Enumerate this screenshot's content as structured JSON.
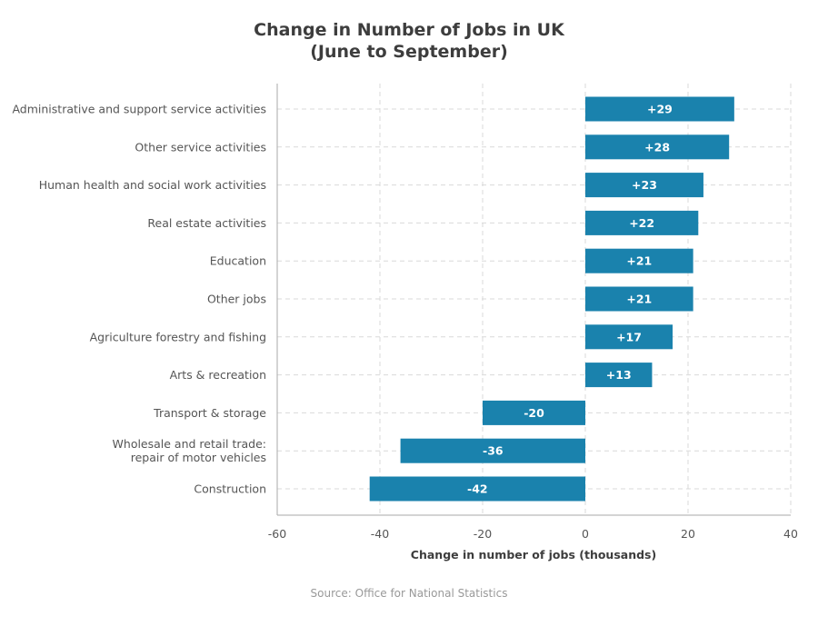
{
  "chart_data": {
    "type": "bar",
    "orientation": "horizontal",
    "title_lines": [
      "Change in Number of Jobs in UK",
      "(June to September)"
    ],
    "xlabel": "Change in number of jobs (thousands)",
    "ylabel": "",
    "xlim": [
      -60,
      40
    ],
    "xticks": [
      -60,
      -40,
      -20,
      0,
      20,
      40
    ],
    "tick_labels": [
      "-60",
      "-40",
      "-20",
      "0",
      "20",
      "40"
    ],
    "grid": true,
    "categories": [
      "Administrative and support service activities",
      "Other service activities",
      "Human health and social work activities",
      "Real estate activities",
      "Education",
      "Other jobs",
      "Agriculture forestry and fishing",
      "Arts & recreation",
      "Transport & storage",
      "Wholesale and retail trade:\nrepair of motor vehicles",
      "Construction"
    ],
    "values": [
      29,
      28,
      23,
      22,
      21,
      21,
      17,
      13,
      -20,
      -36,
      -42
    ],
    "data_labels": [
      "+29",
      "+28",
      "+23",
      "+22",
      "+21",
      "+21",
      "+17",
      "+13",
      "-20",
      "-36",
      "-42"
    ],
    "bar_color": "#1a82ad",
    "source": "Source: Office for National Statistics"
  }
}
